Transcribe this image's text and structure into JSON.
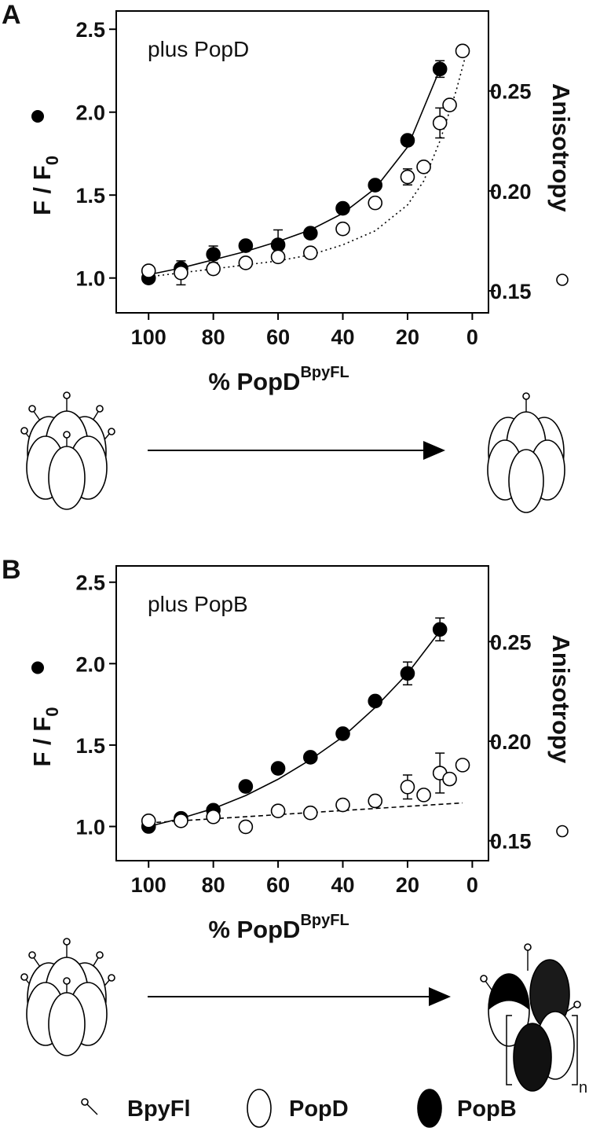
{
  "chart_data": [
    {
      "type": "scatter",
      "panel": "A",
      "title": "plus PopD",
      "x_label": "% PopD",
      "x_label_sup": "BpyFL",
      "y_label": "F / F",
      "y_label_sub": "0",
      "y2_label": "Anisotropy",
      "xlim": [
        110,
        -5
      ],
      "xticks": [
        100,
        80,
        60,
        40,
        20,
        0
      ],
      "ylim": [
        0.79,
        2.61
      ],
      "yticks": [
        {
          "value": 1,
          "label": "1.0"
        },
        1.5,
        {
          "value": 2,
          "label": "2.0"
        },
        2.5
      ],
      "y2lim": [
        0.139,
        0.29
      ],
      "y2ticks": [
        0.15,
        {
          "value": 0.2,
          "label": "0.20"
        },
        0.25
      ],
      "series": [
        {
          "marker": "filled",
          "color": "#000000",
          "x": [
            100,
            90,
            80,
            70,
            60,
            50,
            40,
            30,
            20,
            10
          ],
          "values": [
            1.0,
            1.057,
            1.143,
            1.195,
            1.2,
            1.27,
            1.42,
            1.56,
            1.83,
            2.26
          ],
          "errors": [
            null,
            null,
            0.05,
            null,
            0.09,
            null,
            null,
            null,
            null,
            0.05
          ]
        },
        {
          "marker": "open",
          "color": "#000000",
          "axis": "y2",
          "x": [
            100,
            90,
            80,
            70,
            60,
            50,
            40,
            30,
            20,
            15,
            10,
            7,
            3
          ],
          "values": [
            0.16,
            0.159,
            0.161,
            0.164,
            0.167,
            0.169,
            0.181,
            0.194,
            0.207,
            0.212,
            0.234,
            0.243,
            0.27
          ],
          "errors": [
            0.002,
            0.006,
            null,
            null,
            null,
            0.002,
            null,
            null,
            0.004,
            null,
            0.0075,
            null,
            null
          ]
        },
        {
          "marker": "none",
          "line": "solid",
          "color": "#000000",
          "x": [
            100,
            90,
            80,
            70,
            60,
            50,
            40,
            30,
            20,
            10
          ],
          "values": [
            1.02,
            1.06,
            1.11,
            1.16,
            1.22,
            1.29,
            1.39,
            1.54,
            1.79,
            2.26
          ]
        },
        {
          "marker": "none",
          "line": "dotted",
          "color": "#000000",
          "axis": "y2",
          "x": [
            100,
            90,
            80,
            70,
            60,
            50,
            40,
            30,
            20,
            15,
            10,
            5,
            2
          ],
          "values": [
            0.157,
            0.159,
            0.161,
            0.163,
            0.165,
            0.168,
            0.173,
            0.18,
            0.193,
            0.205,
            0.225,
            0.25,
            0.268
          ]
        }
      ]
    },
    {
      "type": "scatter",
      "panel": "B",
      "title": "plus PopB",
      "x_label": "% PopD",
      "x_label_sup": "BpyFL",
      "y_label": "F / F",
      "y_label_sub": "0",
      "y2_label": "Anisotropy",
      "xlim": [
        110,
        -5
      ],
      "xticks": [
        100,
        80,
        60,
        40,
        20,
        0
      ],
      "ylim": [
        0.79,
        2.6
      ],
      "yticks": [
        {
          "value": 1,
          "label": "1.0"
        },
        1.5,
        {
          "value": 2,
          "label": "2.0"
        },
        2.5
      ],
      "y2lim": [
        0.14,
        0.288
      ],
      "y2ticks": [
        0.15,
        {
          "value": 0.2,
          "label": "0.20"
        },
        0.25
      ],
      "series": [
        {
          "marker": "filled",
          "color": "#000000",
          "x": [
            100,
            90,
            80,
            70,
            60,
            50,
            40,
            30,
            20,
            10
          ],
          "values": [
            1.0,
            1.05,
            1.1,
            1.246,
            1.357,
            1.425,
            1.57,
            1.77,
            1.94,
            2.21
          ],
          "errors": [
            null,
            null,
            null,
            null,
            null,
            null,
            null,
            null,
            0.07,
            0.07
          ]
        },
        {
          "marker": "open",
          "color": "#000000",
          "axis": "y2",
          "x": [
            100,
            90,
            80,
            70,
            60,
            50,
            40,
            30,
            20,
            15,
            10,
            7,
            3
          ],
          "values": [
            0.16,
            0.16,
            0.162,
            0.157,
            0.165,
            0.164,
            0.168,
            0.17,
            0.177,
            0.173,
            0.184,
            0.181,
            0.188
          ],
          "errors": [
            0.002,
            null,
            null,
            null,
            null,
            0.002,
            null,
            null,
            0.006,
            null,
            0.01,
            null,
            null
          ]
        },
        {
          "marker": "none",
          "line": "solid",
          "color": "#000000",
          "x": [
            100,
            90,
            80,
            70,
            60,
            50,
            40,
            30,
            20,
            10
          ],
          "values": [
            1.0,
            1.05,
            1.11,
            1.19,
            1.29,
            1.41,
            1.55,
            1.73,
            1.94,
            2.2
          ]
        },
        {
          "marker": "none",
          "line": "dashed",
          "color": "#000000",
          "axis": "y2",
          "x": [
            100,
            3
          ],
          "values": [
            0.159,
            0.169
          ]
        }
      ]
    }
  ],
  "diagram_b": {
    "subscript": "n"
  },
  "legend": [
    "BpyFl",
    "PopD",
    "PopB"
  ]
}
